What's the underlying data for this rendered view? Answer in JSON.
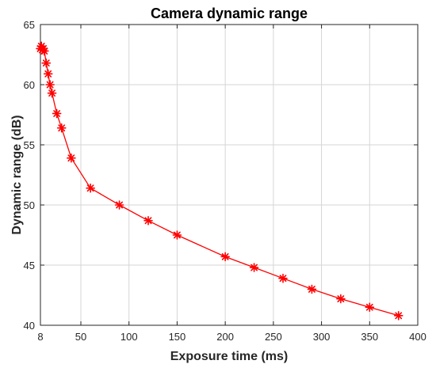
{
  "chart_data": {
    "type": "line",
    "title": "Camera dynamic range",
    "xlabel": "Exposure time (ms)",
    "ylabel": "Dynamic range (dB)",
    "xlim": [
      8,
      400
    ],
    "ylim": [
      40,
      65
    ],
    "x_ticks": [
      8,
      50,
      100,
      150,
      200,
      250,
      300,
      350,
      400
    ],
    "y_ticks": [
      40,
      45,
      50,
      55,
      60,
      65
    ],
    "grid": true,
    "marker": "asterisk",
    "series": [
      {
        "color": "#ff0000",
        "x": [
          8,
          9,
          10,
          11,
          12,
          14,
          16,
          18,
          20,
          25,
          30,
          40,
          60,
          90,
          120,
          150,
          200,
          230,
          260,
          290,
          320,
          350,
          380
        ],
        "y": [
          63.0,
          63.2,
          62.9,
          63.0,
          62.8,
          61.8,
          60.9,
          60.0,
          59.3,
          57.6,
          56.4,
          53.9,
          51.4,
          50.0,
          48.7,
          47.5,
          45.7,
          44.8,
          43.9,
          43.0,
          42.2,
          41.5,
          40.8
        ]
      }
    ]
  }
}
